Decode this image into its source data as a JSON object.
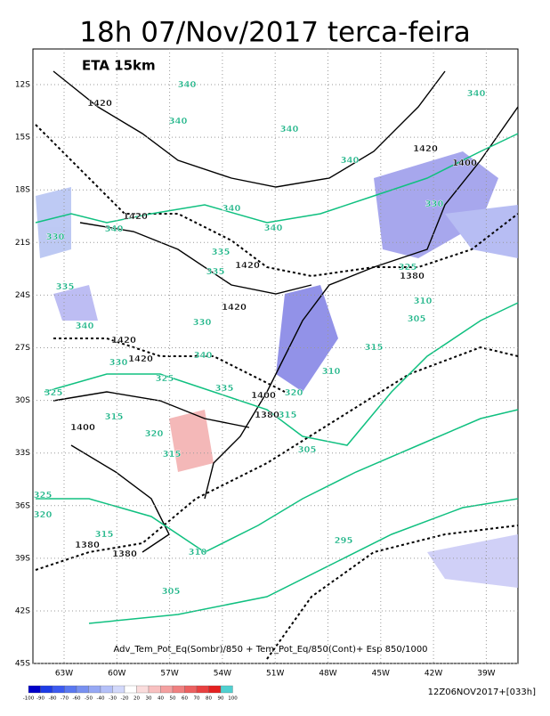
{
  "header": {
    "title": "18h 07/Nov/2017 terca-feira"
  },
  "map": {
    "model_label": "ETA 15km",
    "lat_labels": [
      "12S",
      "15S",
      "18S",
      "21S",
      "24S",
      "27S",
      "30S",
      "33S",
      "36S",
      "39S",
      "42S",
      "45S"
    ],
    "lon_labels": [
      "63W",
      "60W",
      "57W",
      "54W",
      "51W",
      "48W",
      "45W",
      "42W",
      "39W"
    ],
    "caption": "Adv_Tem_Pot_Eq(Sombr)/850 + Tem_Pot_Eq/850(Cont)+ Esp 850/1000",
    "contour_labels": [
      "340",
      "1420",
      "340",
      "340",
      "1420",
      "1400",
      "340",
      "1420",
      "340",
      "330",
      "340",
      "340",
      "330",
      "335",
      "335",
      "1420",
      "335",
      "325",
      "1380",
      "310",
      "1420",
      "305",
      "330",
      "340",
      "1420",
      "315",
      "1420",
      "330",
      "340",
      "310",
      "325",
      "335",
      "1400",
      "320",
      "325",
      "1380",
      "315",
      "315",
      "1400",
      "320",
      "305",
      "315",
      "325",
      "320",
      "315",
      "1380",
      "1380",
      "310",
      "295",
      "305",
      "340"
    ]
  },
  "colorbar": {
    "labels": [
      "-100",
      "-90",
      "-80",
      "-70",
      "-60",
      "-50",
      "-40",
      "-30",
      "-20",
      "20",
      "30",
      "40",
      "50",
      "60",
      "70",
      "80",
      "90",
      "100"
    ]
  },
  "valid_time": "12Z06NOV2017+[033h]"
}
